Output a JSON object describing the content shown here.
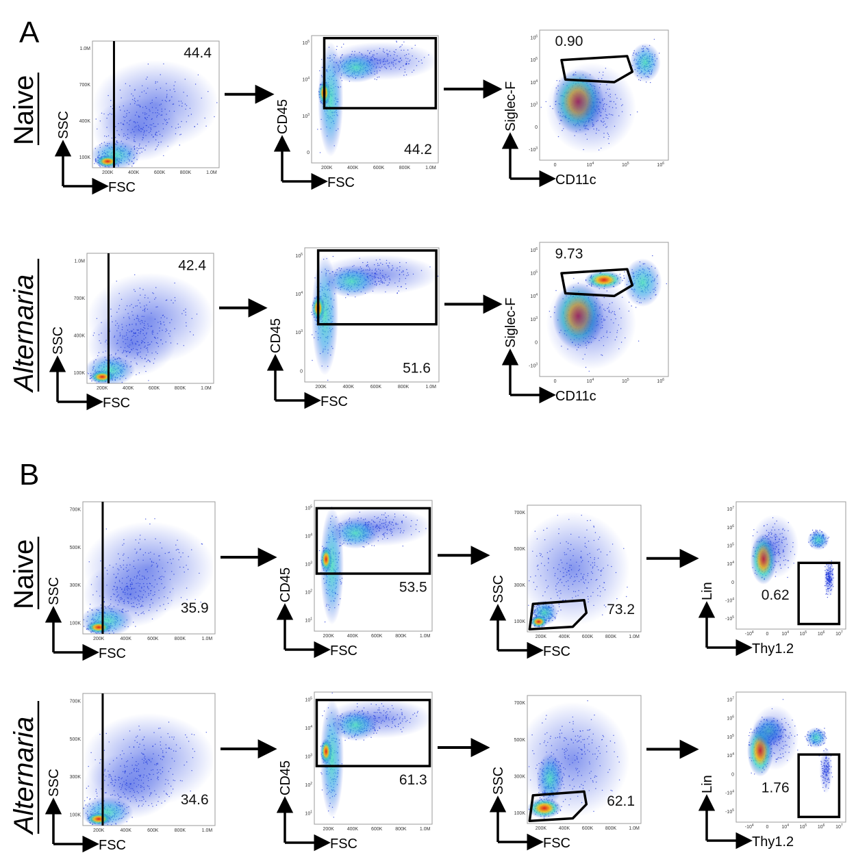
{
  "panels": [
    {
      "letter": "A",
      "rows": [
        {
          "label": "Naive",
          "italic": false,
          "plots": [
            {
              "x_axis": "FSC",
              "y_axis": "SSC",
              "gate_value": "44.4",
              "x_ticks": [
                "200K",
                "400K",
                "600K",
                "800K",
                "1.0M"
              ],
              "y_ticks": [
                "1.0M",
                "700K",
                "400K",
                "100K"
              ]
            },
            {
              "x_axis": "FSC",
              "y_axis": "CD45",
              "gate_value": "44.2",
              "x_ticks": [
                "200K",
                "400K",
                "600K",
                "800K",
                "1.0M"
              ],
              "y_ticks": [
                "10^5",
                "10^4",
                "10^3",
                "0"
              ]
            },
            {
              "x_axis": "CD11c",
              "y_axis": "Siglec-F",
              "gate_value": "0.90",
              "x_ticks": [
                "0",
                "10^4",
                "10^5",
                "10^6"
              ],
              "y_ticks": [
                "10^6",
                "10^5",
                "10^4",
                "10^3",
                "0",
                "-10^3"
              ]
            }
          ]
        },
        {
          "label": "Alternaria",
          "italic": true,
          "plots": [
            {
              "x_axis": "FSC",
              "y_axis": "SSC",
              "gate_value": "42.4",
              "x_ticks": [
                "200K",
                "400K",
                "600K",
                "800K",
                "1.0M"
              ],
              "y_ticks": [
                "1.0M",
                "700K",
                "400K",
                "100K"
              ]
            },
            {
              "x_axis": "FSC",
              "y_axis": "CD45",
              "gate_value": "51.6",
              "x_ticks": [
                "200K",
                "400K",
                "600K",
                "800K",
                "1.0M"
              ],
              "y_ticks": [
                "10^5",
                "10^4",
                "10^3",
                "0"
              ]
            },
            {
              "x_axis": "CD11c",
              "y_axis": "Siglec-F",
              "gate_value": "9.73",
              "x_ticks": [
                "0",
                "10^4",
                "10^5",
                "10^6"
              ],
              "y_ticks": [
                "10^6",
                "10^5",
                "10^4",
                "10^3",
                "0",
                "-10^3"
              ]
            }
          ]
        }
      ]
    },
    {
      "letter": "B",
      "rows": [
        {
          "label": "Naive",
          "italic": false,
          "plots": [
            {
              "x_axis": "FSC",
              "y_axis": "SSC",
              "gate_value": "35.9",
              "x_ticks": [
                "200K",
                "400K",
                "600K",
                "800K",
                "1.0M"
              ],
              "y_ticks": [
                "700K",
                "500K",
                "300K",
                "100K"
              ]
            },
            {
              "x_axis": "FSC",
              "y_axis": "CD45",
              "gate_value": "53.5",
              "x_ticks": [
                "200K",
                "400K",
                "600K",
                "800K",
                "1.0M"
              ],
              "y_ticks": [
                "10^5",
                "10^4",
                "10^3",
                "10^2",
                "10^1"
              ]
            },
            {
              "x_axis": "FSC",
              "y_axis": "SSC",
              "gate_value": "73.2",
              "x_ticks": [
                "200K",
                "400K",
                "600K",
                "800K",
                "1.0M"
              ],
              "y_ticks": [
                "700K",
                "500K",
                "300K",
                "100K"
              ]
            },
            {
              "x_axis": "Thy1.2",
              "y_axis": "Lin",
              "gate_value": "0.62",
              "x_ticks": [
                "-10^4",
                "0",
                "10^4",
                "10^5",
                "10^6",
                "10^7"
              ],
              "y_ticks": [
                "10^7",
                "10^6",
                "10^5",
                "10^4",
                "0",
                "-10^4",
                "-10^5"
              ]
            }
          ]
        },
        {
          "label": "Alternaria",
          "italic": true,
          "plots": [
            {
              "x_axis": "FSC",
              "y_axis": "SSC",
              "gate_value": "34.6",
              "x_ticks": [
                "200K",
                "400K",
                "600K",
                "800K",
                "1.0M"
              ],
              "y_ticks": [
                "700K",
                "500K",
                "300K",
                "100K"
              ]
            },
            {
              "x_axis": "FSC",
              "y_axis": "CD45",
              "gate_value": "61.3",
              "x_ticks": [
                "200K",
                "400K",
                "600K",
                "800K",
                "1.0M"
              ],
              "y_ticks": [
                "10^5",
                "10^4",
                "10^3",
                "10^2",
                "10^1"
              ]
            },
            {
              "x_axis": "FSC",
              "y_axis": "SSC",
              "gate_value": "62.1",
              "x_ticks": [
                "200K",
                "400K",
                "600K",
                "800K",
                "1.0M"
              ],
              "y_ticks": [
                "700K",
                "500K",
                "300K",
                "100K"
              ]
            },
            {
              "x_axis": "Thy1.2",
              "y_axis": "Lin",
              "gate_value": "1.76",
              "x_ticks": [
                "-10^4",
                "0",
                "10^4",
                "10^5",
                "10^6",
                "10^7"
              ],
              "y_ticks": [
                "10^7",
                "10^6",
                "10^5",
                "10^4",
                "0",
                "-10^4",
                "-10^5"
              ]
            }
          ]
        }
      ]
    }
  ],
  "colors": {
    "density_low": "#1a2fd6",
    "density_mid": "#2fd0e0",
    "density_high": "#f0e020",
    "density_peak": "#e0201a",
    "gate_stroke": "#000000",
    "arrow": "#000000"
  }
}
